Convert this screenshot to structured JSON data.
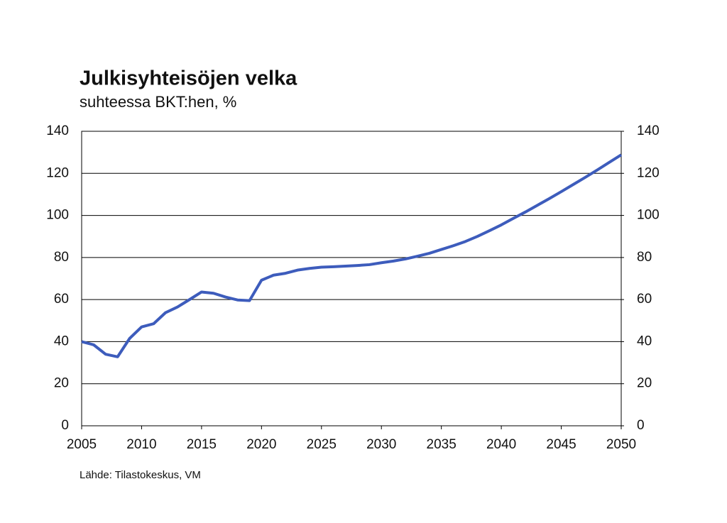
{
  "chart_data": {
    "type": "line",
    "title": "Julkisyhteisöjen velka",
    "subtitle": "suhteessa BKT:hen, %",
    "source": "Lähde: Tilastokeskus, VM",
    "x": [
      2005,
      2006,
      2007,
      2008,
      2009,
      2010,
      2011,
      2012,
      2013,
      2014,
      2015,
      2016,
      2017,
      2018,
      2019,
      2020,
      2021,
      2022,
      2023,
      2024,
      2025,
      2026,
      2027,
      2028,
      2029,
      2030,
      2031,
      2032,
      2033,
      2034,
      2035,
      2036,
      2037,
      2038,
      2039,
      2040,
      2041,
      2042,
      2043,
      2044,
      2045,
      2046,
      2047,
      2048,
      2049,
      2050
    ],
    "series": [
      {
        "color": "#3d5cbc",
        "values": [
          40,
          38.5,
          34,
          32.8,
          41.5,
          47,
          48.5,
          53.8,
          56.5,
          60,
          63.6,
          63,
          61.2,
          59.8,
          59.5,
          69.2,
          71.6,
          72.5,
          74,
          74.8,
          75.4,
          75.6,
          75.9,
          76.2,
          76.6,
          77.5,
          78.3,
          79.3,
          80.6,
          82,
          83.8,
          85.6,
          87.6,
          90,
          92.7,
          95.5,
          98.6,
          101.6,
          104.8,
          108,
          111.3,
          114.7,
          118.1,
          121.6,
          125.2,
          128.8
        ]
      }
    ],
    "xlim": [
      2005,
      2050
    ],
    "xticks": [
      2005,
      2010,
      2015,
      2020,
      2025,
      2030,
      2035,
      2040,
      2045,
      2050
    ],
    "ylim": [
      0,
      140
    ],
    "yticks": [
      0,
      20,
      40,
      60,
      80,
      100,
      120,
      140
    ],
    "y2lim": [
      0,
      140
    ],
    "y2ticks": [
      0,
      20,
      40,
      60,
      80,
      100,
      120,
      140
    ],
    "grid": true
  }
}
